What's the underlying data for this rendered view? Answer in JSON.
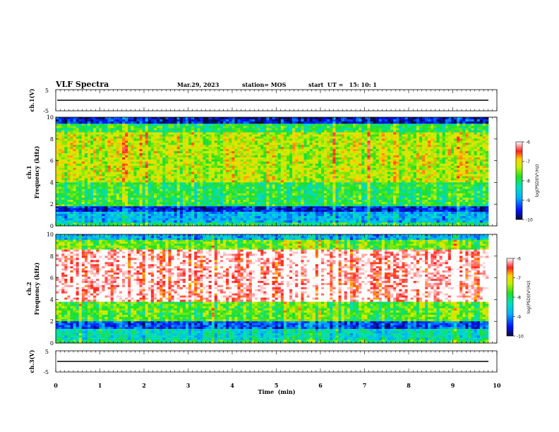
{
  "header": {
    "title": "VLF Spectra",
    "date": "Mar.29, 2023",
    "station": "station= MOS",
    "start": "start  UT =   15: 10: 1"
  },
  "chart_data": {
    "type": "heatmap",
    "xlabel": "Time  (min)",
    "xlim": [
      0,
      10
    ],
    "xticks": [
      "0",
      "1",
      "2",
      "3",
      "4",
      "5",
      "6",
      "7",
      "8",
      "9",
      "10"
    ],
    "waveform_panels": [
      {
        "ylabel": "ch.1(V)",
        "ylim": [
          -5,
          5
        ],
        "ytick_labels": [
          "5",
          "-5"
        ],
        "baseline": 0
      },
      {
        "ylabel": "ch.3(V)",
        "ylim": [
          -5,
          5
        ],
        "ytick_labels": [
          "5",
          "-5"
        ],
        "baseline": 0
      }
    ],
    "spectrogram_panels": [
      {
        "ylabel_channel": "ch.1",
        "ylabel": "Frequency  (kHz)",
        "ylim": [
          0,
          10
        ],
        "yticks": [
          "0",
          "2",
          "4",
          "6",
          "8",
          "10"
        ],
        "colorbar": {
          "label": "log(PSD)(V²/Hz)",
          "range": [
            -10,
            -6
          ],
          "ticks": [
            "-6",
            "-7",
            "-8",
            "-9",
            "-10"
          ]
        },
        "bands": [
          {
            "from": 9.4,
            "to": 10.0,
            "level": -9.6
          },
          {
            "from": 8.6,
            "to": 9.4,
            "level": -7.9
          },
          {
            "from": 4.0,
            "to": 8.6,
            "level": -7.3
          },
          {
            "from": 1.8,
            "to": 4.0,
            "level": -7.9
          },
          {
            "from": 1.3,
            "to": 1.8,
            "level": -9.5
          },
          {
            "from": 0.3,
            "to": 1.3,
            "level": -8.8
          },
          {
            "from": 0.0,
            "to": 0.3,
            "level": -8.0
          }
        ]
      },
      {
        "ylabel_channel": "ch.2",
        "ylabel": "Frequency  (kHz)",
        "ylim": [
          0,
          10
        ],
        "yticks": [
          "0",
          "2",
          "4",
          "6",
          "8",
          "10"
        ],
        "colorbar": {
          "label": "log(PSD)(V²/Hz)",
          "range": [
            -10,
            -6
          ],
          "ticks": [
            "-6",
            "-7",
            "-8",
            "-9",
            "-10"
          ]
        },
        "bands": [
          {
            "from": 9.5,
            "to": 10.0,
            "level": -8.8
          },
          {
            "from": 8.6,
            "to": 9.5,
            "level": -7.6
          },
          {
            "from": 3.8,
            "to": 8.6,
            "level": -6.1
          },
          {
            "from": 2.0,
            "to": 3.8,
            "level": -7.7
          },
          {
            "from": 1.3,
            "to": 2.0,
            "level": -9.3
          },
          {
            "from": 0.3,
            "to": 1.3,
            "level": -8.4
          },
          {
            "from": 0.0,
            "to": 0.3,
            "level": -8.0
          }
        ]
      }
    ]
  }
}
